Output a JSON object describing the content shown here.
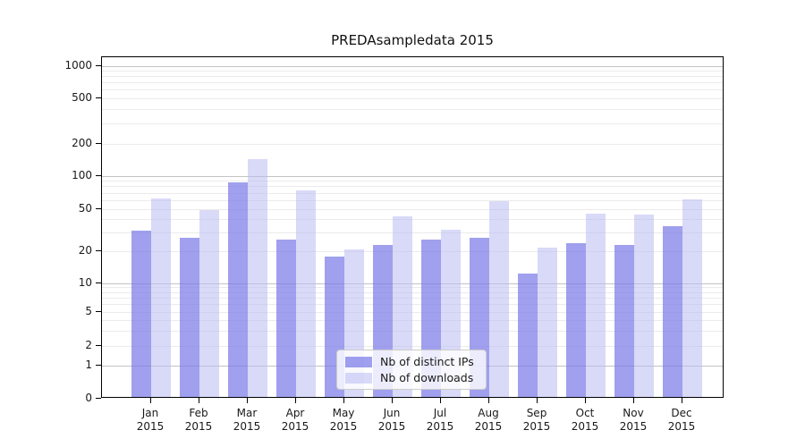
{
  "title": "PREDAsampledata 2015",
  "year_label": "2015",
  "chart_data": {
    "type": "bar",
    "title": "PREDAsampledata 2015",
    "categories": [
      "Jan 2015",
      "Feb 2015",
      "Mar 2015",
      "Apr 2015",
      "May 2015",
      "Jun 2015",
      "Jul 2015",
      "Aug 2015",
      "Sep 2015",
      "Oct 2015",
      "Nov 2015",
      "Dec 2015"
    ],
    "month_names": [
      "Jan",
      "Feb",
      "Mar",
      "Apr",
      "May",
      "Jun",
      "Jul",
      "Aug",
      "Sep",
      "Oct",
      "Nov",
      "Dec"
    ],
    "series": [
      {
        "name": "Nb of distinct IPs",
        "color": "rgba(119,119,231,0.7)",
        "solid_color": "#a0a0ee",
        "values": [
          30,
          26,
          85,
          25,
          17,
          22,
          25,
          26,
          12,
          23,
          22,
          33
        ]
      },
      {
        "name": "Nb of downloads",
        "color": "rgba(186,186,242,0.55)",
        "solid_color": "#d9d9f8",
        "values": [
          60,
          47,
          140,
          72,
          20,
          41,
          31,
          57,
          21,
          44,
          43,
          59
        ]
      }
    ],
    "yticks": [
      0,
      1,
      2,
      5,
      10,
      20,
      50,
      100,
      200,
      500,
      1000
    ],
    "ytick_labels": [
      "0",
      "1",
      "2",
      "5",
      "10",
      "20",
      "50",
      "100",
      "200",
      "500",
      "1000"
    ],
    "yscale": "log-like with 0 baseline",
    "ylim": [
      0,
      1300
    ],
    "grid": "horizontal, minor lines light gray, powers of 10 darker",
    "legend_position": "lower center inside plot",
    "xlabel": "",
    "ylabel": ""
  },
  "legend": {
    "items": [
      {
        "label": "Nb of distinct IPs"
      },
      {
        "label": "Nb of downloads"
      }
    ]
  }
}
